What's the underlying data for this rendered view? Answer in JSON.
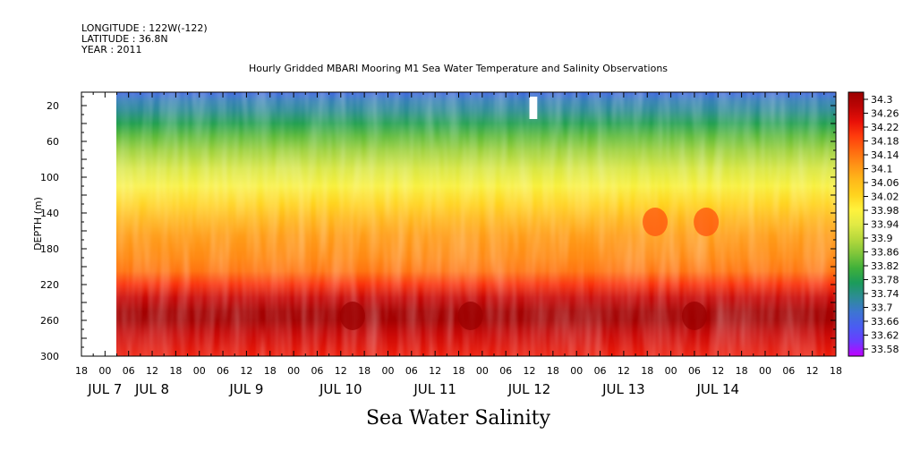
{
  "header": {
    "lines": [
      "LONGITUDE : 122W(-122)",
      "LATITUDE : 36.8N",
      "YEAR : 2011"
    ]
  },
  "colors": {
    "missing": "#ffffff",
    "gap_rect": "#ffffff",
    "frame": "#000000"
  },
  "chart_data": {
    "type": "heatmap",
    "title": "Hourly Gridded MBARI Mooring M1 Sea Water Temperature and Salinity Observations",
    "variable_label": "Sea Water Salinity",
    "ylabel": "DEPTH (m)",
    "ylim": [
      300,
      5
    ],
    "yticks": [
      20,
      60,
      100,
      140,
      180,
      220,
      260,
      300
    ],
    "xlim_hours": [
      -6,
      186
    ],
    "data_start_hour": 3,
    "hour_tick_step": 3,
    "hour_tick_labels": [
      "18",
      "00",
      "06",
      "12",
      "18",
      "00",
      "06",
      "12",
      "18",
      "00",
      "06",
      "12",
      "18",
      "00",
      "06",
      "12",
      "18",
      "00",
      "06",
      "12",
      "18",
      "00",
      "06",
      "12",
      "18",
      "00",
      "06",
      "12",
      "18",
      "00",
      "06",
      "12",
      "18"
    ],
    "hour_tick_positions": [
      -6,
      0,
      6,
      12,
      18,
      24,
      30,
      36,
      42,
      48,
      54,
      60,
      66,
      72,
      78,
      84,
      90,
      96,
      102,
      108,
      114,
      120,
      126,
      132,
      138,
      144,
      150,
      156,
      162,
      168,
      174,
      180,
      186
    ],
    "date_labels": [
      {
        "hour": 0,
        "label": "JUL  7"
      },
      {
        "hour": 12,
        "label": "JUL  8"
      },
      {
        "hour": 36,
        "label": "JUL  9"
      },
      {
        "hour": 60,
        "label": "JUL 10"
      },
      {
        "hour": 84,
        "label": "JUL 11"
      },
      {
        "hour": 108,
        "label": "JUL 12"
      },
      {
        "hour": 132,
        "label": "JUL 13"
      },
      {
        "hour": 156,
        "label": "JUL 14"
      }
    ],
    "colorbar": {
      "min": 33.58,
      "max": 34.3,
      "step": 0.02,
      "labels": [
        "34.3",
        "34.26",
        "34.22",
        "34.18",
        "34.14",
        "34.1",
        "34.06",
        "34.02",
        "33.98",
        "33.94",
        "33.9",
        "33.86",
        "33.82",
        "33.78",
        "33.74",
        "33.7",
        "33.66",
        "33.62",
        "33.58"
      ],
      "stops": [
        "#c000ff",
        "#6a3cff",
        "#4a5cf2",
        "#3d75d2",
        "#2d8c96",
        "#1b9b5a",
        "#3fb03a",
        "#80c63a",
        "#b7d93c",
        "#e2ea45",
        "#fff23c",
        "#ffd31e",
        "#ffb91a",
        "#ff9416",
        "#ff6a10",
        "#ff3c0c",
        "#e81008",
        "#bd0505",
        "#9c0000"
      ]
    },
    "depth_profile": [
      {
        "depth": 5,
        "salinity": 33.68
      },
      {
        "depth": 15,
        "salinity": 33.72
      },
      {
        "depth": 25,
        "salinity": 33.74
      },
      {
        "depth": 40,
        "salinity": 33.79
      },
      {
        "depth": 55,
        "salinity": 33.84
      },
      {
        "depth": 70,
        "salinity": 33.88
      },
      {
        "depth": 90,
        "salinity": 33.93
      },
      {
        "depth": 110,
        "salinity": 33.97
      },
      {
        "depth": 130,
        "salinity": 34.02
      },
      {
        "depth": 145,
        "salinity": 34.06
      },
      {
        "depth": 165,
        "salinity": 34.09
      },
      {
        "depth": 190,
        "salinity": 34.11
      },
      {
        "depth": 205,
        "salinity": 34.13
      },
      {
        "depth": 220,
        "salinity": 34.19
      },
      {
        "depth": 235,
        "salinity": 34.25
      },
      {
        "depth": 250,
        "salinity": 34.29
      },
      {
        "depth": 260,
        "salinity": 34.29
      },
      {
        "depth": 275,
        "salinity": 34.25
      },
      {
        "depth": 300,
        "salinity": 34.21
      }
    ],
    "missing_blocks": [
      {
        "hour_start": 108,
        "hour_end": 110,
        "depth_top": 10,
        "depth_bottom": 35
      }
    ],
    "notable_features": [
      {
        "hour": 63,
        "depth": 255,
        "salinity": 34.3
      },
      {
        "hour": 93,
        "depth": 255,
        "salinity": 34.3
      },
      {
        "hour": 150,
        "depth": 255,
        "salinity": 34.3
      },
      {
        "hour": 140,
        "depth": 150,
        "salinity": 34.16
      },
      {
        "hour": 153,
        "depth": 150,
        "salinity": 34.16
      }
    ]
  }
}
